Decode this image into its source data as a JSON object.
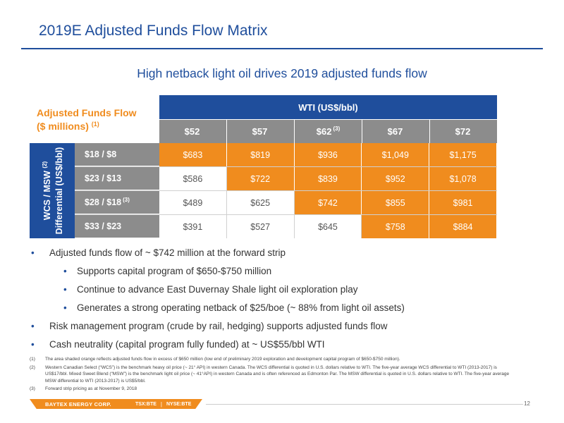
{
  "header": {
    "title": "2019E Adjusted Funds Flow Matrix",
    "subtitle": "High netback light oil drives 2019 adjusted funds flow"
  },
  "matrix": {
    "label_line1": "Adjusted Funds Flow",
    "label_line2": "($ millions)",
    "label_note": "(1)",
    "wti_header": "WTI (US$/bbl)",
    "prices": [
      {
        "label": "$52",
        "note": ""
      },
      {
        "label": "$57",
        "note": ""
      },
      {
        "label": "$62",
        "note": "(3)"
      },
      {
        "label": "$67",
        "note": ""
      },
      {
        "label": "$72",
        "note": ""
      }
    ],
    "side_label_line1": "WCS / MSW",
    "side_label_note": "(2)",
    "side_label_line2": "Differential (US$/bbl)",
    "rows": [
      {
        "diff": "$18 / $8",
        "note": "",
        "values": [
          "$683",
          "$819",
          "$936",
          "$1,049",
          "$1,175"
        ],
        "highlight": [
          true,
          true,
          true,
          true,
          true
        ]
      },
      {
        "diff": "$23 / $13",
        "note": "",
        "values": [
          "$586",
          "$722",
          "$839",
          "$952",
          "$1,078"
        ],
        "highlight": [
          false,
          true,
          true,
          true,
          true
        ]
      },
      {
        "diff": "$28 / $18",
        "note": "(3)",
        "values": [
          "$489",
          "$625",
          "$742",
          "$855",
          "$981"
        ],
        "highlight": [
          false,
          false,
          true,
          true,
          true
        ]
      },
      {
        "diff": "$33 / $23",
        "note": "",
        "values": [
          "$391",
          "$527",
          "$645",
          "$758",
          "$884"
        ],
        "highlight": [
          false,
          false,
          false,
          true,
          true
        ]
      }
    ]
  },
  "bullets": [
    {
      "level": 1,
      "text": "Adjusted funds flow of ~ $742 million at the forward strip"
    },
    {
      "level": 2,
      "text": "Supports capital program of $650-$750 million"
    },
    {
      "level": 2,
      "text": "Continue to advance East Duvernay Shale light oil exploration play"
    },
    {
      "level": 2,
      "text": "Generates a strong operating netback of $25/boe (~ 88% from light oil assets)"
    },
    {
      "level": 1,
      "text": "Risk management program (crude by rail, hedging) supports adjusted funds flow"
    },
    {
      "level": 1,
      "text": "Cash neutrality (capital program fully funded) at ~ US$55/bbl WTI"
    }
  ],
  "footnotes": [
    {
      "num": "(1)",
      "text": "The area shaded orange reflects adjusted funds flow in excess of $650 million (low end of preliminary 2019 exploration and development capital program of $650-$750 million)."
    },
    {
      "num": "(2)",
      "text": "Western Canadian Select (“WCS”) is the benchmark heavy oil price (~ 21° API) in western Canada. The WCS differential is quoted in U.S. dollars relative to WTI. The five-year average WCS differential to WTI (2013-2017) is US$17/bbl. Mixed Sweet Blend (“MSW”) is the benchmark light oil price (~ 41°API) in western Canada and is often referenced as Edmonton Par. The MSW differential is quoted in U.S. dollars relative to WTI. The five-year average MSW differential to WTI (2013-2017) is US$5/bbl."
    },
    {
      "num": "(3)",
      "text": "Forward strip pricing as at November 9, 2018"
    }
  ],
  "footer": {
    "brand": "BAYTEX ENERGY CORP.",
    "ticker_tsx": "TSX:BTE",
    "ticker_sep": "|",
    "ticker_nyse": "NYSE:BTE",
    "page_number": "12"
  },
  "colors": {
    "brand_blue": "#1f4e9c",
    "highlight_orange": "#f08c1e",
    "header_gray": "#8c8c8c"
  }
}
